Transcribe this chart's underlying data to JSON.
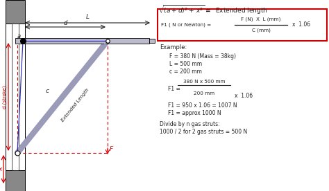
{
  "bg_color": "#ffffff",
  "diagram": {
    "wall_color": "#888888",
    "wall_dark": "#555555",
    "strut_color": "#9999bb",
    "strut_line": "#555577",
    "red_color": "#cc0000",
    "blue_color": "#3333bb",
    "dark_color": "#222222",
    "lid_color": "#bbbbcc"
  },
  "right": {
    "title": "\\sqrt{(a+d)^2+ x^2} =  Extended length",
    "box_color": "#cc2222",
    "f1_lhs": "F1 ( N or Newton) =",
    "frac_num": "F (N)  X  L (mm)",
    "frac_den": "C (mm)",
    "multiplier": "x  1.06",
    "example_header": "Example:",
    "ex_lines": [
      "F = 380 N (Mass = 38kg)",
      "L = 500 mm",
      "c = 200 mm"
    ],
    "calc_num": "380 N x 500 mm",
    "calc_f1": "F1 =",
    "calc_den": "200 mm",
    "calc_mult": "x  1.06",
    "res1": "F1 = 950 x 1.06 = 1007 N",
    "res2": "F1 = approx 1000 N",
    "div1": "Divide by n gas struts:",
    "div2": "1000 / 2 for 2 gas struts = 500 N"
  }
}
